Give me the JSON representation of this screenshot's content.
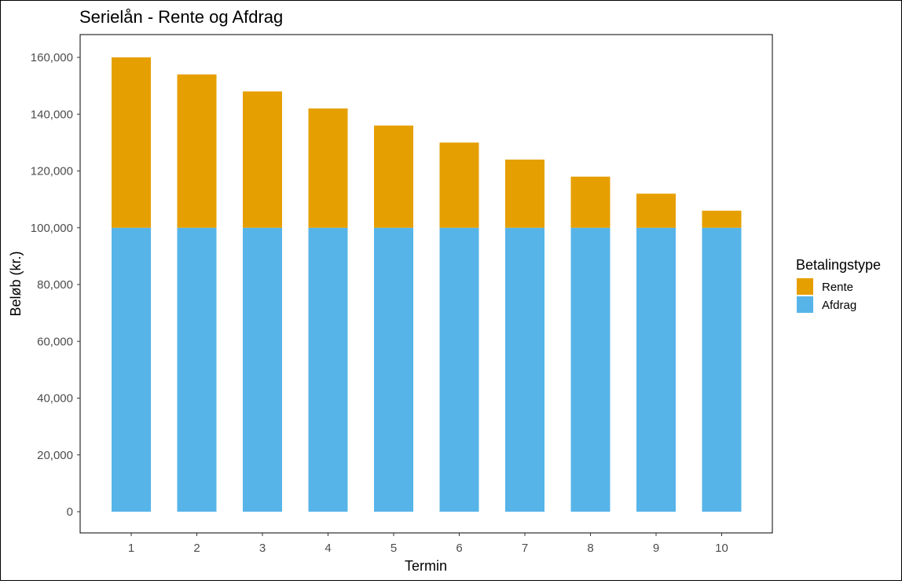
{
  "chart_data": {
    "type": "bar",
    "stacked": true,
    "title": "Serielån - Rente og Afdrag",
    "xlabel": "Termin",
    "ylabel": "Beløb (kr.)",
    "categories": [
      "1",
      "2",
      "3",
      "4",
      "5",
      "6",
      "7",
      "8",
      "9",
      "10"
    ],
    "series": [
      {
        "name": "Afdrag",
        "color": "#56B4E9",
        "values": [
          100000,
          100000,
          100000,
          100000,
          100000,
          100000,
          100000,
          100000,
          100000,
          100000
        ]
      },
      {
        "name": "Rente",
        "color": "#E69F00",
        "values": [
          60000,
          54000,
          48000,
          42000,
          36000,
          30000,
          24000,
          18000,
          12000,
          6000
        ]
      }
    ],
    "ylim": [
      0,
      160000
    ],
    "yticks": [
      0,
      20000,
      40000,
      60000,
      80000,
      100000,
      120000,
      140000,
      160000
    ],
    "ytick_labels": [
      "0",
      "20,000",
      "40,000",
      "60,000",
      "80,000",
      "100,000",
      "120,000",
      "140,000",
      "160,000"
    ],
    "grid": false,
    "legend": {
      "title": "Betalingstype",
      "position": "right",
      "items": [
        {
          "label": "Rente",
          "color": "#E69F00"
        },
        {
          "label": "Afdrag",
          "color": "#56B4E9"
        }
      ]
    }
  }
}
